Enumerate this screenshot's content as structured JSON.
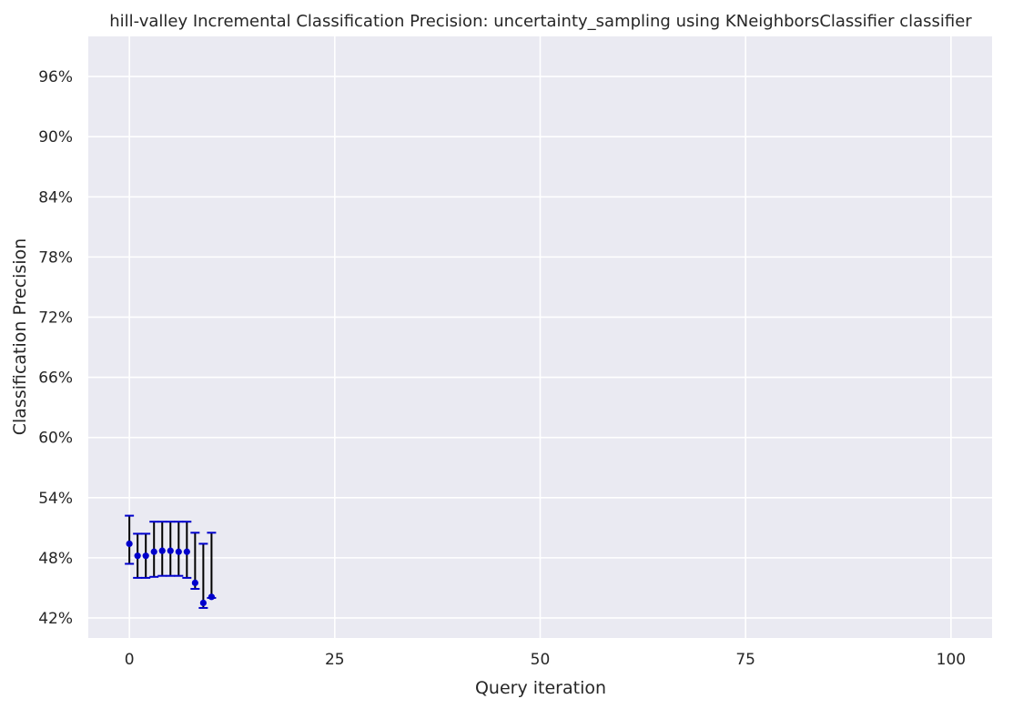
{
  "chart_data": {
    "type": "scatter",
    "title": "hill-valley Incremental Classification Precision: uncertainty_sampling using KNeighborsClassifier classifier",
    "xlabel": "Query iteration",
    "ylabel": "Classification Precision",
    "xlim": [
      -5,
      105
    ],
    "ylim": [
      0.4,
      1.0
    ],
    "x_ticks": [
      0,
      25,
      50,
      75,
      100
    ],
    "x_tick_labels": [
      "0",
      "25",
      "50",
      "75",
      "100"
    ],
    "y_ticks": [
      0.42,
      0.48,
      0.54,
      0.6,
      0.66,
      0.72,
      0.78,
      0.84,
      0.9,
      0.96
    ],
    "y_tick_labels": [
      "42%",
      "48%",
      "54%",
      "60%",
      "66%",
      "72%",
      "78%",
      "84%",
      "90%",
      "96%"
    ],
    "grid": true,
    "background_color": "#eaeaf2",
    "grid_color": "#ffffff",
    "marker_color": "#0000cc",
    "errorbar_color": "#000000",
    "cap_color": "#0000cc",
    "series": [
      {
        "x": [
          0,
          1,
          2,
          3,
          4,
          5,
          6,
          7,
          8,
          9,
          10
        ],
        "y": [
          0.494,
          0.482,
          0.482,
          0.486,
          0.487,
          0.487,
          0.486,
          0.486,
          0.455,
          0.435,
          0.441
        ],
        "err_low": [
          0.474,
          0.46,
          0.46,
          0.461,
          0.462,
          0.462,
          0.462,
          0.46,
          0.449,
          0.43,
          0.44
        ],
        "err_high": [
          0.522,
          0.504,
          0.504,
          0.516,
          0.516,
          0.516,
          0.516,
          0.516,
          0.505,
          0.494,
          0.505
        ]
      }
    ]
  }
}
